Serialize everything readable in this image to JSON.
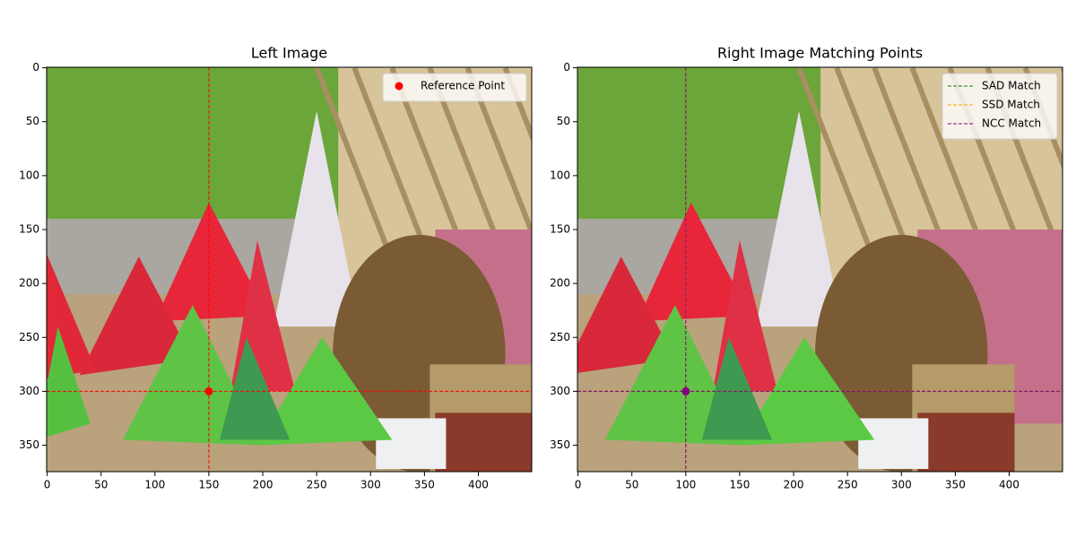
{
  "chart_data": [
    {
      "type": "image",
      "title": "Left Image",
      "xlim": [
        -0.5,
        449.5
      ],
      "ylim": [
        374.5,
        -0.5
      ],
      "xticks": [
        0,
        50,
        100,
        150,
        200,
        250,
        300,
        350,
        400
      ],
      "yticks": [
        0,
        50,
        100,
        150,
        200,
        250,
        300,
        350
      ],
      "legend": "upper right",
      "legend_symbol": "dot",
      "series": [
        {
          "name": "Reference Point",
          "color": "#ff0000",
          "x": [
            150
          ],
          "values": [
            300
          ]
        }
      ]
    },
    {
      "type": "image",
      "title": "Right Image Matching Points",
      "xlim": [
        -0.5,
        449.5
      ],
      "ylim": [
        374.5,
        -0.5
      ],
      "xticks": [
        0,
        50,
        100,
        150,
        200,
        250,
        300,
        350,
        400
      ],
      "yticks": [
        0,
        50,
        100,
        150,
        200,
        250,
        300,
        350
      ],
      "legend": "upper right",
      "legend_symbol": "dash",
      "series": [
        {
          "name": "SAD Match",
          "color": "#008000",
          "x": [
            100
          ],
          "values": [
            300
          ]
        },
        {
          "name": "SSD Match",
          "color": "#ffa500",
          "x": [
            100
          ],
          "values": [
            300
          ]
        },
        {
          "name": "NCC Match",
          "color": "#800080",
          "x": [
            100
          ],
          "values": [
            300
          ]
        }
      ]
    }
  ]
}
